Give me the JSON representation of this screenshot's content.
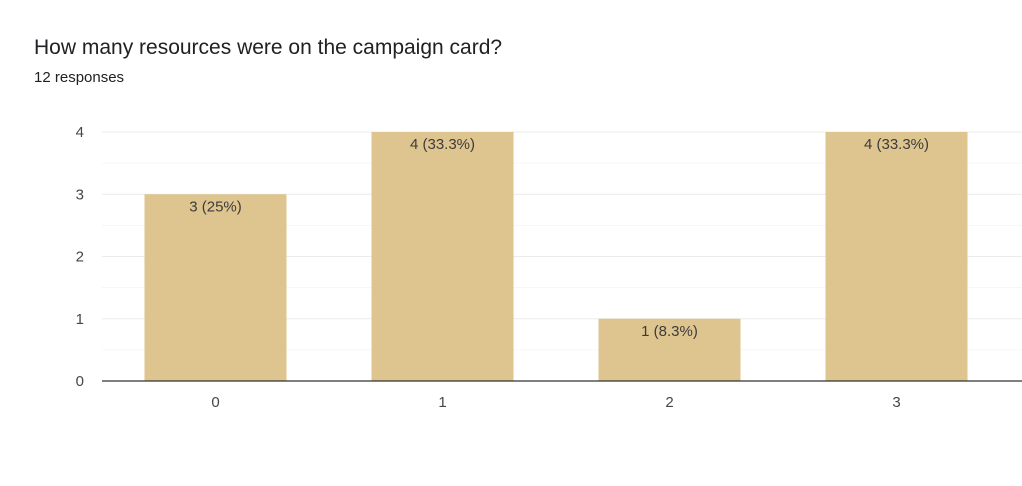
{
  "header": {
    "title": "How many resources were on the campaign card?",
    "subtitle": "12 responses"
  },
  "colors": {
    "bar": "#dec48e",
    "gridline": "#ebebeb",
    "minor_gridline": "#f6f6f6",
    "baseline": "#333333"
  },
  "chart_data": {
    "type": "bar",
    "title": "How many resources were on the campaign card?",
    "subtitle": "12 responses",
    "categories": [
      "0",
      "1",
      "2",
      "3"
    ],
    "values": [
      3,
      4,
      1,
      4
    ],
    "data_labels": [
      "3 (25%)",
      "4 (33.3%)",
      "1 (8.3%)",
      "4 (33.3%)"
    ],
    "y_ticks": [
      "0",
      "1",
      "2",
      "3",
      "4"
    ],
    "ylim": [
      0,
      4
    ],
    "grid": true,
    "legend": "none",
    "xlabel": "",
    "ylabel": ""
  }
}
